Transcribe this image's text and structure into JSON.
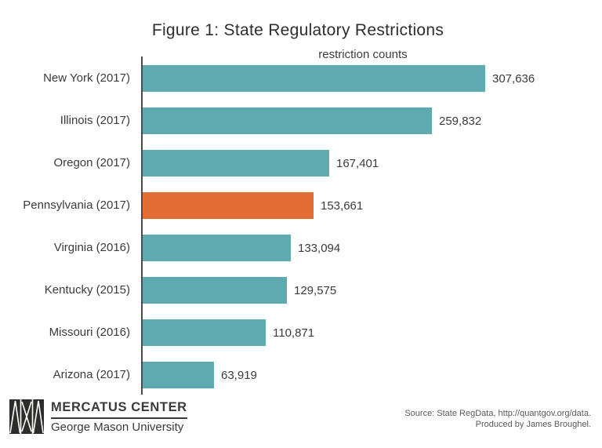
{
  "chart_data": {
    "type": "bar",
    "orientation": "horizontal",
    "title": "Figure 1: State Regulatory Restrictions",
    "subtitle": "restriction counts",
    "xlabel": "restriction counts",
    "categories": [
      "New York (2017)",
      "Illinois (2017)",
      "Oregon (2017)",
      "Pennsylvania (2017)",
      "Virginia (2016)",
      "Kentucky (2015)",
      "Missouri (2016)",
      "Arizona (2017)"
    ],
    "values": [
      307636,
      259832,
      167401,
      153661,
      133094,
      129575,
      110871,
      63919
    ],
    "value_labels": [
      "307,636",
      "259,832",
      "167,401",
      "153,661",
      "133,094",
      "129,575",
      "110,871",
      "63,919"
    ],
    "highlight_index": 3,
    "highlighted_category": "Pennsylvania (2017)",
    "xlim": [
      0,
      320000
    ],
    "grid": false,
    "legend": false,
    "bar_color": "#5fa9b0",
    "highlight_color": "#e26e35"
  },
  "colors": {
    "bar_teal": "#5fa9b0",
    "bar_orange": "#e26e35",
    "axis": "#4a4a4b",
    "text_dark": "#3b3b3b"
  },
  "footer": {
    "logo_title": "MERCATUS CENTER",
    "logo_subtitle": "George Mason University",
    "source_line1": "Source: State RegData, http://quantgov.org/data.",
    "source_line2": "Produced by James Broughel."
  }
}
